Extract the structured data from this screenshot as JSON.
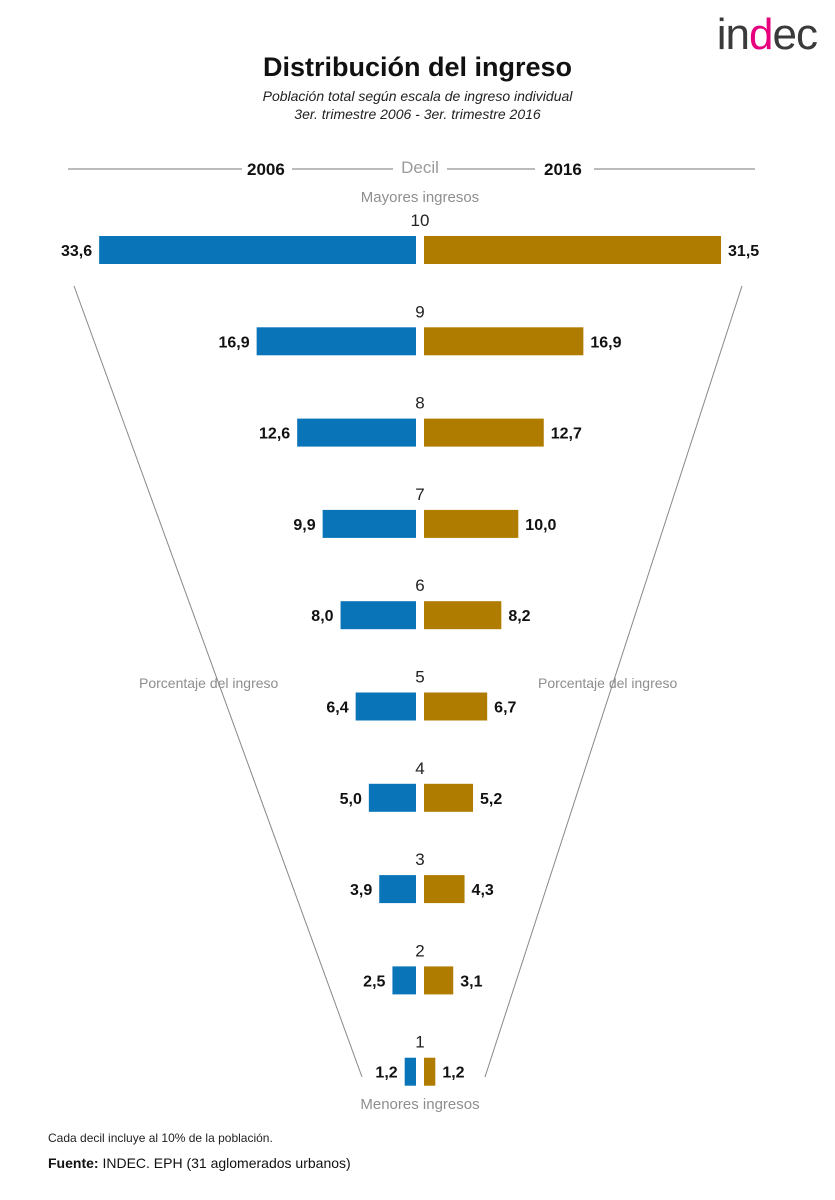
{
  "logo": {
    "pre": "in",
    "dot": "d",
    "post": "ec"
  },
  "header": {
    "title": "Distribución del ingreso",
    "subtitle_line1": "Población total según escala de ingreso individual",
    "subtitle_line2": "3er. trimestre 2006 - 3er. trimestre 2016"
  },
  "labels": {
    "decil": "Decil",
    "top_note": "Mayores ingresos",
    "bottom_note": "Menores ingresos",
    "pct_left": "Porcentaje del ingreso",
    "pct_right": "Porcentaje del ingreso"
  },
  "footer": {
    "note": "Cada decil incluye al 10% de la población.",
    "source_label": "Fuente:",
    "source_text": " INDEC. EPH (31 aglomerados urbanos)"
  },
  "colors": {
    "series_2006": "#0a74b8",
    "series_2016": "#b07c00",
    "guide": "#888888"
  },
  "chart_data": {
    "type": "bar",
    "orientation": "horizontal-butterfly",
    "title": "Distribución del ingreso",
    "categories": [
      "10",
      "9",
      "8",
      "7",
      "6",
      "5",
      "4",
      "3",
      "2",
      "1"
    ],
    "series": [
      {
        "name": "2006",
        "values": [
          33.6,
          16.9,
          12.6,
          9.9,
          8.0,
          6.4,
          5.0,
          3.9,
          2.5,
          1.2
        ],
        "labels": [
          "33,6",
          "16,9",
          "12,6",
          "9,9",
          "8,0",
          "6,4",
          "5,0",
          "3,9",
          "2,5",
          "1,2"
        ]
      },
      {
        "name": "2016",
        "values": [
          31.5,
          16.9,
          12.7,
          10.0,
          8.2,
          6.7,
          5.2,
          4.3,
          3.1,
          1.2
        ],
        "labels": [
          "31,5",
          "16,9",
          "12,7",
          "10,0",
          "8,2",
          "6,7",
          "5,2",
          "4,3",
          "3,1",
          "1,2"
        ]
      }
    ],
    "xlabel": "Porcentaje del ingreso",
    "ylabel": "Decil"
  }
}
